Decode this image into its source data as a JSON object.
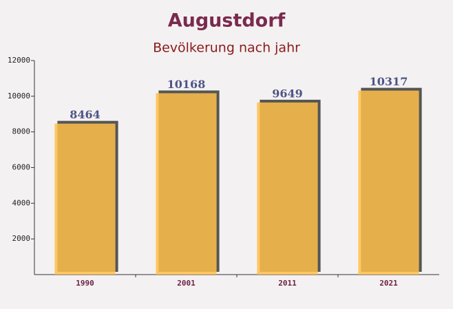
{
  "chart_data": {
    "type": "bar",
    "title": "Augustdorf",
    "subtitle": "Bevölkerung nach jahr",
    "categories": [
      "1990",
      "2001",
      "2011",
      "2021"
    ],
    "values": [
      8464,
      10168,
      9649,
      10317
    ],
    "color": "#ffc04a",
    "ylim": [
      0,
      12000
    ],
    "yticks": [
      2000,
      4000,
      6000,
      8000,
      10000,
      12000
    ],
    "grid": false
  }
}
